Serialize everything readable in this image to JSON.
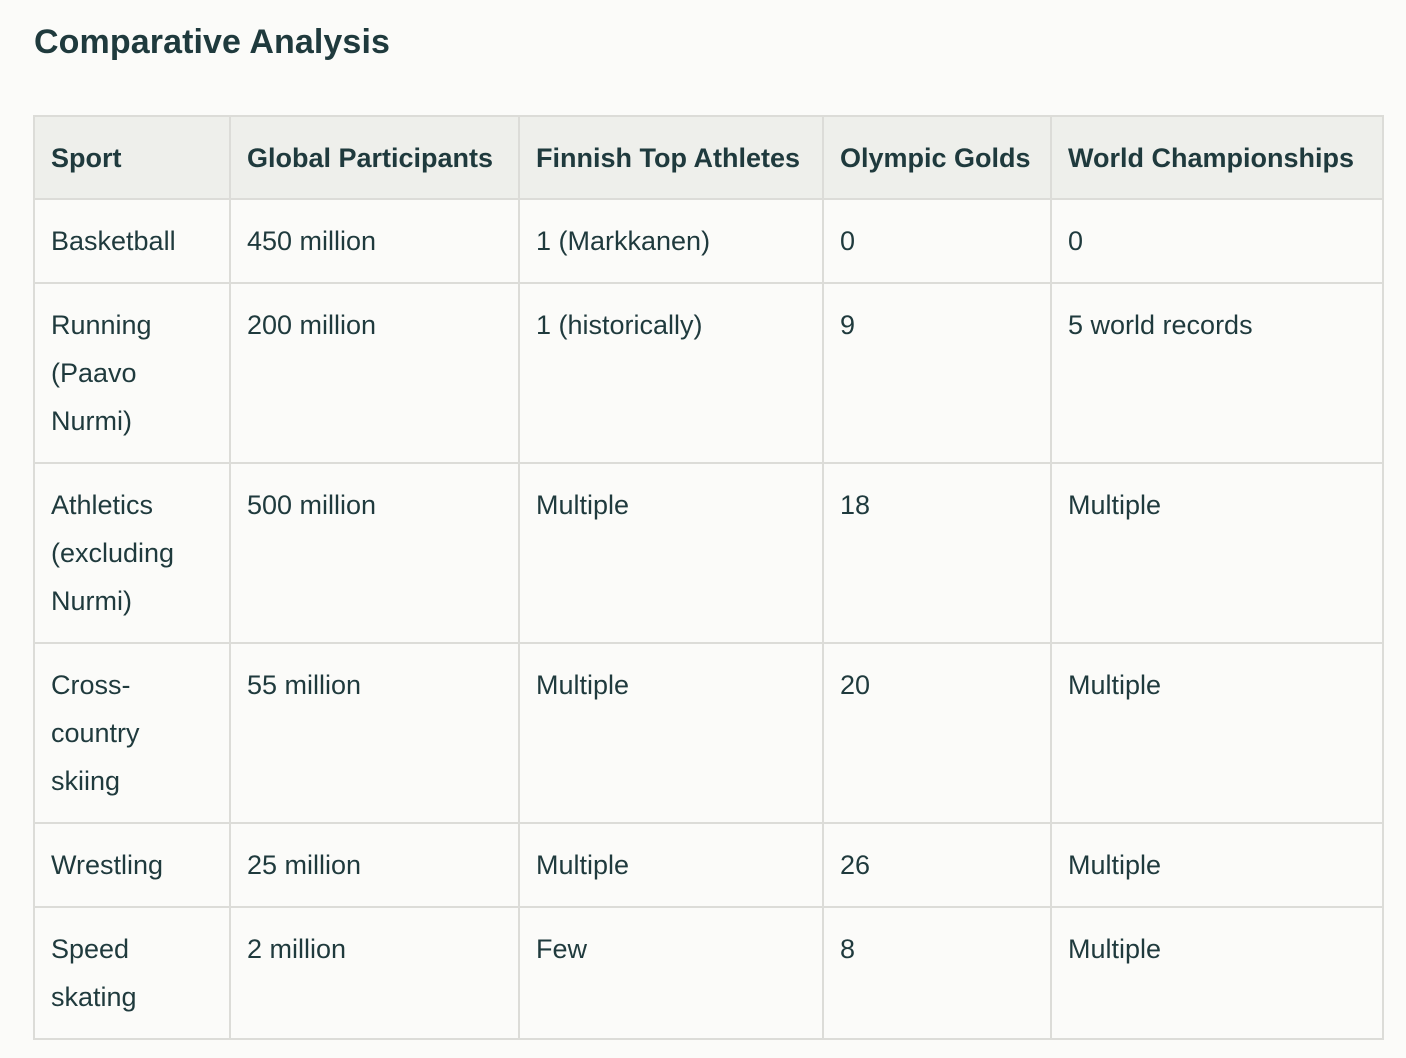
{
  "page": {
    "title": "Comparative Analysis"
  },
  "table": {
    "headers": [
      "Sport",
      "Global Participants",
      "Finnish Top Athletes",
      "Olympic Golds",
      "World Championships"
    ],
    "rows": [
      [
        "Basketball",
        "450 million",
        "1 (Markkanen)",
        "0",
        "0"
      ],
      [
        "Running (Paavo Nurmi)",
        "200 million",
        "1 (historically)",
        "9",
        "5 world records"
      ],
      [
        "Athletics (excluding Nurmi)",
        "500 million",
        "Multiple",
        "18",
        "Multiple"
      ],
      [
        "Cross-country skiing",
        "55 million",
        "Multiple",
        "20",
        "Multiple"
      ],
      [
        "Wrestling",
        "25 million",
        "Multiple",
        "26",
        "Multiple"
      ],
      [
        "Speed skating",
        "2 million",
        "Few",
        "8",
        "Multiple"
      ]
    ]
  },
  "colors": {
    "text": "#1f3a3d",
    "header_bg": "#eeefeb",
    "border": "#dcdcd8",
    "page_bg": "#fbfbf9"
  }
}
